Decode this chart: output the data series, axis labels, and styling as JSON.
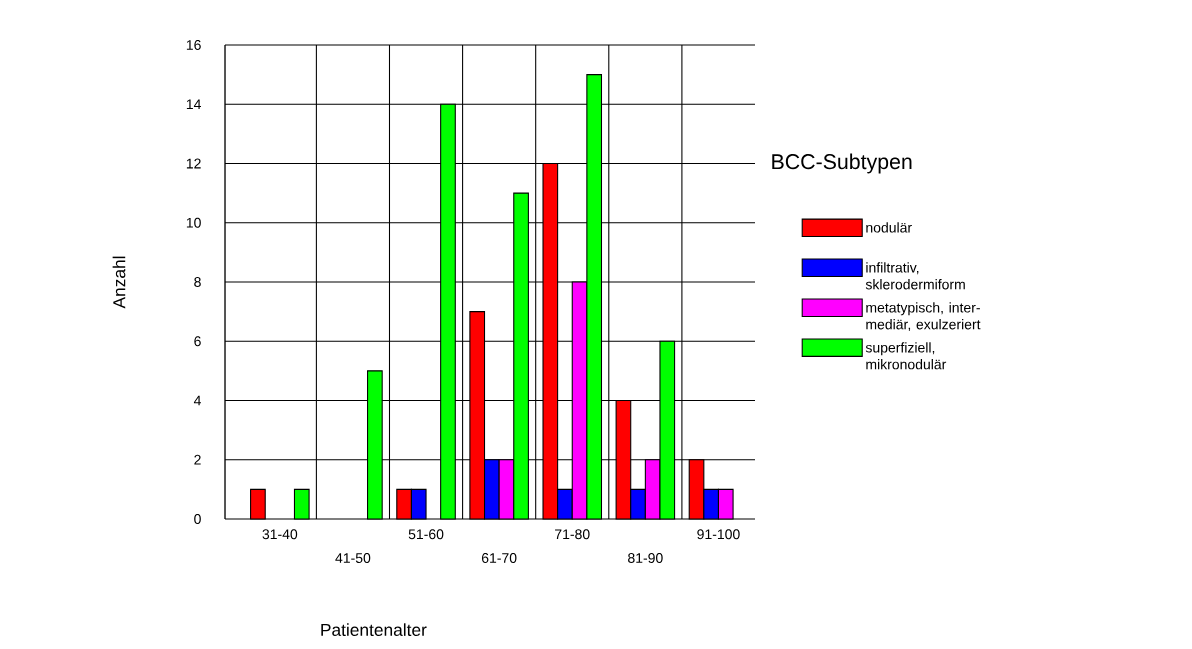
{
  "chart_data": {
    "type": "bar",
    "categories": [
      "31-40",
      "41-50",
      "51-60",
      "61-70",
      "71-80",
      "81-90",
      "91-100"
    ],
    "series": [
      {
        "name": "nodulär",
        "color": "#ff0000",
        "values": [
          1,
          null,
          1,
          7,
          12,
          4,
          2
        ]
      },
      {
        "name": "infiltrativ, sklerodermiform",
        "color": "#0000ff",
        "values": [
          null,
          null,
          1,
          2,
          1,
          1,
          1
        ]
      },
      {
        "name": "metatypisch, inter-mediär, exulzeriert",
        "color": "#ff00ff",
        "values": [
          null,
          null,
          null,
          2,
          8,
          2,
          1
        ]
      },
      {
        "name": "superfiziell, mikronodulär",
        "color": "#00ff00",
        "values": [
          1,
          5,
          14,
          11,
          15,
          6,
          null
        ]
      }
    ],
    "xlabel": "Patientenalter",
    "ylabel": "Anzahl",
    "legend_title": "BCC-Subtypen",
    "ylim": [
      0,
      16
    ],
    "yticks": [
      0,
      2,
      4,
      6,
      8,
      10,
      12,
      14,
      16
    ],
    "grid": true,
    "legend": "right"
  }
}
